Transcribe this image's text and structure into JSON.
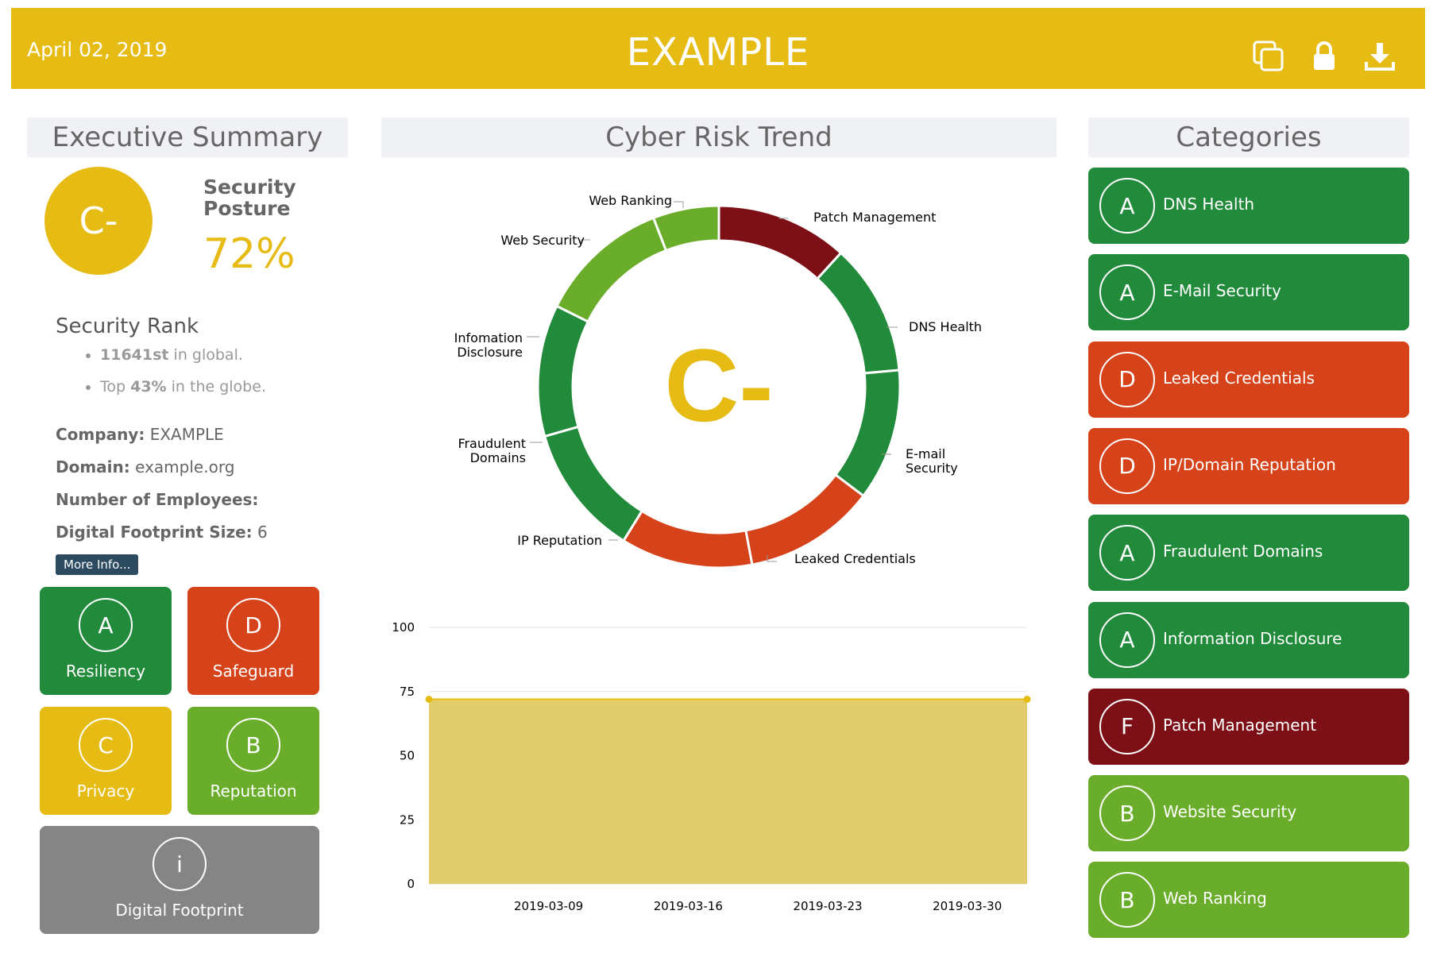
{
  "header": {
    "date": "April 02, 2019",
    "title": "EXAMPLE",
    "icons": [
      "copy-icon",
      "lock-icon",
      "download-icon"
    ]
  },
  "summary": {
    "heading": "Executive Summary",
    "grade": "C-",
    "posture_label_1": "Security",
    "posture_label_2": "Posture",
    "posture_value": "72%",
    "rank_heading": "Security Rank",
    "rank_global_value": "11641st",
    "rank_global_suffix": " in global.",
    "rank_top_prefix": "Top ",
    "rank_top_value": "43%",
    "rank_top_suffix": " in the globe.",
    "company_label": "Company:",
    "company_value": "EXAMPLE",
    "domain_label": "Domain:",
    "domain_value": "example.org",
    "employees_label": "Number of Employees:",
    "employees_value": "",
    "footprint_label": "Digital Footprint Size:",
    "footprint_value": "6",
    "more_info": "More Info..."
  },
  "tiles": [
    {
      "grade": "A",
      "label": "Resiliency",
      "color": "#228b3b"
    },
    {
      "grade": "D",
      "label": "Safeguard",
      "color": "#d6431b"
    },
    {
      "grade": "C",
      "label": "Privacy",
      "color": "#e5bb14"
    },
    {
      "grade": "B",
      "label": "Reputation",
      "color": "#6aad2a"
    },
    {
      "grade": "i",
      "label": "Digital Footprint",
      "color": "#858585"
    }
  ],
  "trend": {
    "heading": "Cyber Risk Trend",
    "center_grade": "C-",
    "donut_labels": {
      "web_ranking": "Web Ranking",
      "patch_management": "Patch Management",
      "web_security": "Web Security",
      "dns_health": "DNS Health",
      "info_disclosure_1": "Infomation",
      "info_disclosure_2": "Disclosure",
      "fraudulent_1": "Fraudulent",
      "fraudulent_2": "Domains",
      "email_1": "E-mail",
      "email_2": "Security",
      "ip_reputation": "IP Reputation",
      "leaked_credentials": "Leaked Credentials"
    }
  },
  "chart_data": [
    {
      "type": "pie",
      "center_text": "C-",
      "slices": [
        {
          "name": "Patch Management",
          "value": 1,
          "color": "#7d1016"
        },
        {
          "name": "DNS Health",
          "value": 1,
          "color": "#228b3b"
        },
        {
          "name": "E-mail Security",
          "value": 1,
          "color": "#228b3b"
        },
        {
          "name": "Leaked Credentials",
          "value": 1,
          "color": "#d6431b"
        },
        {
          "name": "IP Reputation",
          "value": 1,
          "color": "#d6431b"
        },
        {
          "name": "Fraudulent Domains",
          "value": 1,
          "color": "#228b3b"
        },
        {
          "name": "Infomation Disclosure",
          "value": 1,
          "color": "#228b3b"
        },
        {
          "name": "Web Security",
          "value": 1,
          "color": "#6aad2a"
        },
        {
          "name": "Web Ranking",
          "value": 0.5,
          "color": "#6aad2a"
        }
      ]
    },
    {
      "type": "area",
      "x": [
        "2019-03-03",
        "2019-04-02"
      ],
      "y": [
        72,
        72
      ],
      "xticks": [
        "2019-03-09",
        "2019-03-16",
        "2019-03-23",
        "2019-03-30"
      ],
      "yticks": [
        0,
        25,
        50,
        75,
        100
      ],
      "ylim": [
        0,
        100
      ],
      "color": "#e2cd6d",
      "grid": true
    }
  ],
  "categories": {
    "heading": "Categories",
    "items": [
      {
        "grade": "A",
        "label": "DNS Health",
        "color": "#228b3b"
      },
      {
        "grade": "A",
        "label": "E-Mail Security",
        "color": "#228b3b"
      },
      {
        "grade": "D",
        "label": "Leaked Credentials",
        "color": "#d6431b"
      },
      {
        "grade": "D",
        "label": "IP/Domain Reputation",
        "color": "#d6431b"
      },
      {
        "grade": "A",
        "label": "Fraudulent Domains",
        "color": "#228b3b"
      },
      {
        "grade": "A",
        "label": "Information Disclosure",
        "color": "#228b3b"
      },
      {
        "grade": "F",
        "label": "Patch Management",
        "color": "#7d1016"
      },
      {
        "grade": "B",
        "label": "Website Security",
        "color": "#6aad2a"
      },
      {
        "grade": "B",
        "label": "Web Ranking",
        "color": "#6aad2a"
      }
    ]
  }
}
